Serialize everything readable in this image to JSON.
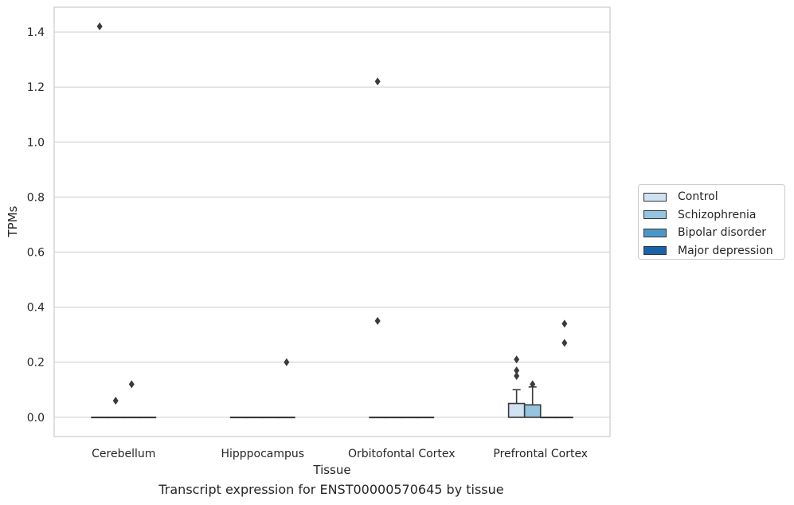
{
  "chart_data": {
    "type": "box",
    "title": "",
    "caption": "Transcript expression for ENST00000570645 by tissue",
    "xlabel": "Tissue",
    "ylabel": "TPMs",
    "categories": [
      "Cerebellum",
      "Hipppocampus",
      "Orbitofontal Cortex",
      "Prefrontal Cortex"
    ],
    "ylim": [
      -0.07,
      1.49
    ],
    "yticks": [
      0.0,
      0.2,
      0.4,
      0.6,
      0.8,
      1.0,
      1.2,
      1.4
    ],
    "ytick_labels": [
      "0.0",
      "0.2",
      "0.4",
      "0.6",
      "0.8",
      "1.0",
      "1.2",
      "1.4"
    ],
    "grid": "horizontal",
    "legend_position": "right",
    "series": [
      {
        "name": "Control",
        "color": "#d0e1f2",
        "boxes": [
          {
            "q1": 0,
            "median": 0,
            "q3": 0,
            "whisker_low": 0,
            "whisker_high": 0,
            "outliers": [
              1.42
            ]
          },
          {
            "q1": 0,
            "median": 0,
            "q3": 0,
            "whisker_low": 0,
            "whisker_high": 0,
            "outliers": []
          },
          {
            "q1": 0,
            "median": 0,
            "q3": 0,
            "whisker_low": 0,
            "whisker_high": 0,
            "outliers": [
              1.22,
              0.35
            ]
          },
          {
            "q1": 0,
            "median": 0,
            "q3": 0.05,
            "whisker_low": 0,
            "whisker_high": 0.1,
            "outliers": [
              0.21,
              0.17,
              0.15
            ]
          }
        ]
      },
      {
        "name": "Schizophrenia",
        "color": "#94c4df",
        "boxes": [
          {
            "q1": 0,
            "median": 0,
            "q3": 0,
            "whisker_low": 0,
            "whisker_high": 0,
            "outliers": [
              0.06
            ]
          },
          {
            "q1": 0,
            "median": 0,
            "q3": 0,
            "whisker_low": 0,
            "whisker_high": 0,
            "outliers": []
          },
          {
            "q1": 0,
            "median": 0,
            "q3": 0,
            "whisker_low": 0,
            "whisker_high": 0,
            "outliers": []
          },
          {
            "q1": 0,
            "median": 0,
            "q3": 0.045,
            "whisker_low": 0,
            "whisker_high": 0.11,
            "outliers": [
              0.12
            ]
          }
        ]
      },
      {
        "name": "Bipolar disorder",
        "color": "#4a98c9",
        "boxes": [
          {
            "q1": 0,
            "median": 0,
            "q3": 0,
            "whisker_low": 0,
            "whisker_high": 0,
            "outliers": [
              0.12
            ]
          },
          {
            "q1": 0,
            "median": 0,
            "q3": 0,
            "whisker_low": 0,
            "whisker_high": 0,
            "outliers": []
          },
          {
            "q1": 0,
            "median": 0,
            "q3": 0,
            "whisker_low": 0,
            "whisker_high": 0,
            "outliers": []
          },
          {
            "q1": 0,
            "median": 0,
            "q3": 0,
            "whisker_low": 0,
            "whisker_high": 0,
            "outliers": []
          }
        ]
      },
      {
        "name": "Major depression",
        "color": "#1764ab",
        "boxes": [
          {
            "q1": 0,
            "median": 0,
            "q3": 0,
            "whisker_low": 0,
            "whisker_high": 0,
            "outliers": []
          },
          {
            "q1": 0,
            "median": 0,
            "q3": 0,
            "whisker_low": 0,
            "whisker_high": 0,
            "outliers": [
              0.2
            ]
          },
          {
            "q1": 0,
            "median": 0,
            "q3": 0,
            "whisker_low": 0,
            "whisker_high": 0,
            "outliers": []
          },
          {
            "q1": 0,
            "median": 0,
            "q3": 0,
            "whisker_low": 0,
            "whisker_high": 0,
            "outliers": [
              0.34,
              0.27
            ]
          }
        ]
      }
    ]
  }
}
